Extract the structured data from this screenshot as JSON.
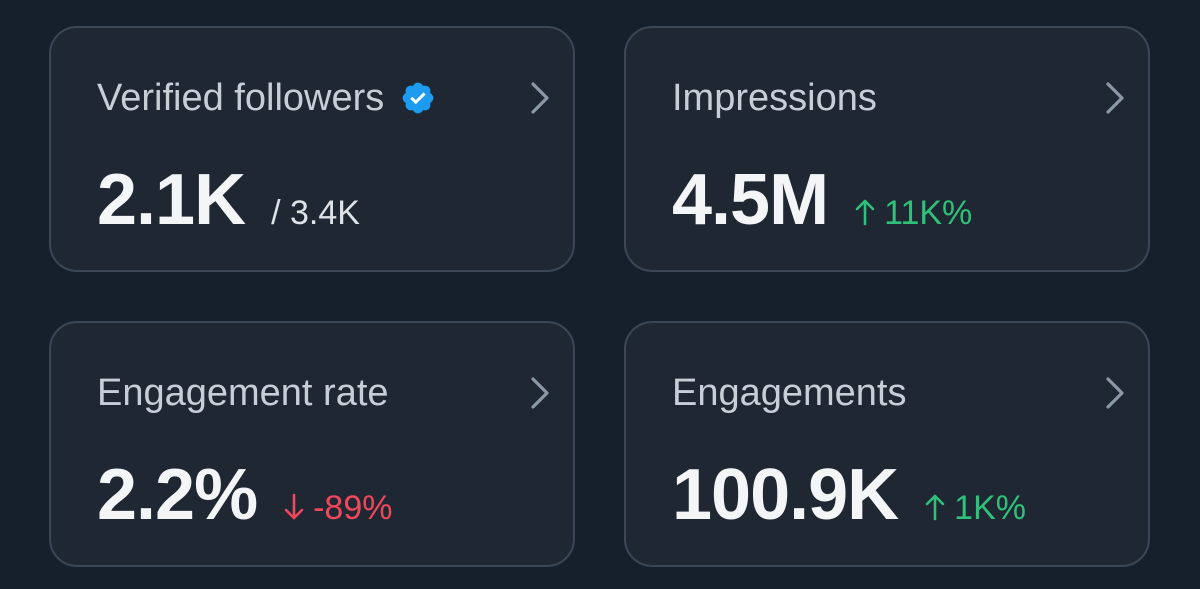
{
  "colors": {
    "background": "#16202c",
    "card": "#1f2733",
    "border": "#3b4754",
    "verified_blue": "#1d9bf0",
    "positive": "#2fc17a",
    "negative": "#f0475c"
  },
  "cards": [
    {
      "title": "Verified followers",
      "icon": "verified-badge-icon",
      "value": "2.1K",
      "secondary": "/ 3.4K"
    },
    {
      "title": "Impressions",
      "value": "4.5M",
      "change": "11K%",
      "direction": "up"
    },
    {
      "title": "Engagement rate",
      "value": "2.2%",
      "change": "-89%",
      "direction": "down"
    },
    {
      "title": "Engagements",
      "value": "100.9K",
      "change": "1K%",
      "direction": "up"
    }
  ]
}
